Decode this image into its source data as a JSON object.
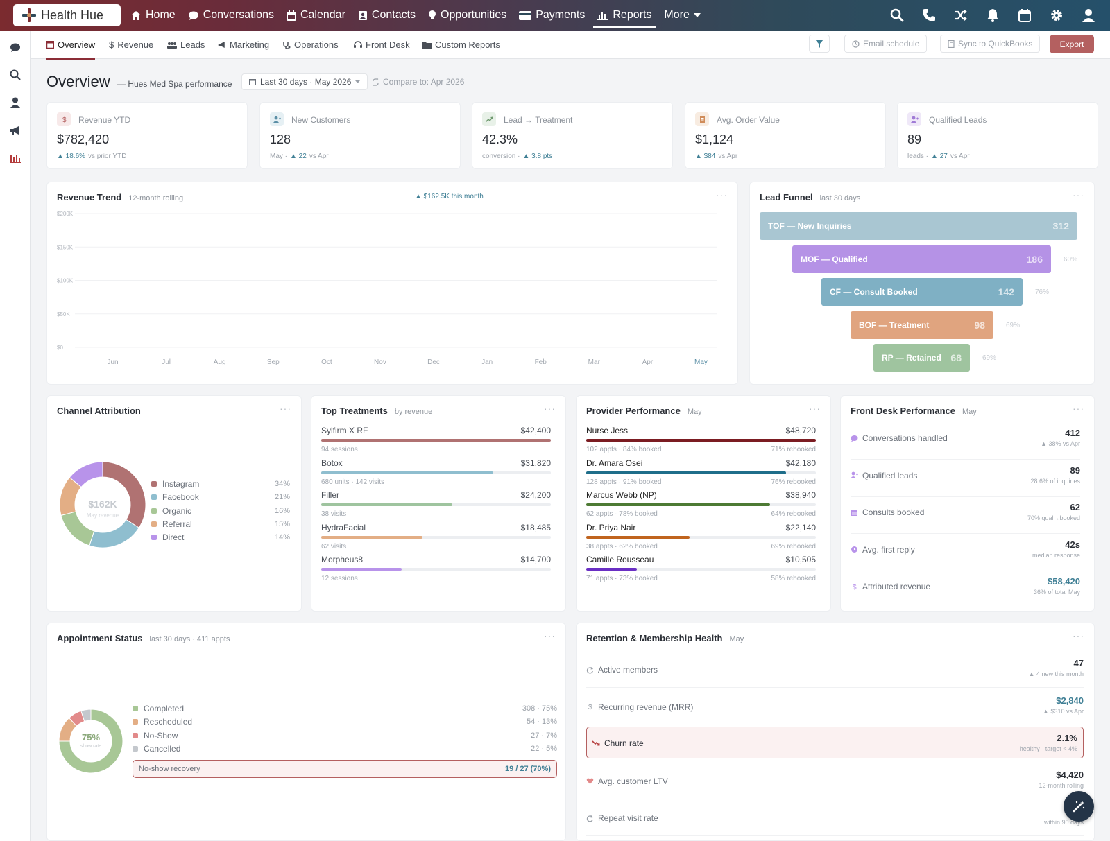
{
  "app": {
    "name": "Health Hue"
  },
  "topnav": {
    "items": [
      "Home",
      "Conversations",
      "Calendar",
      "Contacts",
      "Opportunities",
      "Payments",
      "Reports",
      "More"
    ],
    "active": "Reports"
  },
  "subnav": {
    "tabs": [
      "Overview",
      "Revenue",
      "Leads",
      "Marketing",
      "Operations",
      "Front Desk",
      "Custom Reports"
    ],
    "active": "Overview",
    "email_schedule": "Email schedule",
    "sync": "Sync to QuickBooks",
    "export": "Export"
  },
  "header": {
    "title": "Overview",
    "subtitle": "— Hues Med Spa performance",
    "date_range": "Last 30 days · May 2026",
    "compare": "Compare to: Apr 2026"
  },
  "kpis": [
    {
      "label": "Revenue YTD",
      "value": "$782,420",
      "sub_prefix": "",
      "delta": "▲ 18.6%",
      "sub_suffix": "vs prior YTD",
      "icon": "$",
      "icon_color": "#b46060",
      "icon_bg": "#f7e9e9"
    },
    {
      "label": "New Customers",
      "value": "128",
      "sub_prefix": "May ·",
      "delta": "▲ 22",
      "sub_suffix": "vs Apr",
      "icon": "user-plus",
      "icon_color": "#5b8fa6",
      "icon_bg": "#e6f0f4"
    },
    {
      "label": "Lead → Treatment",
      "value": "42.3%",
      "sub_prefix": "conversion ·",
      "delta": "▲ 3.8 pts",
      "sub_suffix": "",
      "icon": "trend",
      "icon_color": "#6f9a6f",
      "icon_bg": "#e8f1e8"
    },
    {
      "label": "Avg. Order Value",
      "value": "$1,124",
      "sub_prefix": "",
      "delta": "▲ $84",
      "sub_suffix": "vs Apr",
      "icon": "receipt",
      "icon_color": "#d08c5a",
      "icon_bg": "#f8ece1"
    },
    {
      "label": "Qualified Leads",
      "value": "89",
      "sub_prefix": "leads ·",
      "delta": "▲ 27",
      "sub_suffix": "vs Apr",
      "icon": "user-check",
      "icon_color": "#a07bd6",
      "icon_bg": "#efe8f8"
    }
  ],
  "revenue_trend": {
    "title": "Revenue Trend",
    "subtitle": "12-month rolling",
    "badge": "▲ $162.5K this month"
  },
  "chart_data": {
    "type": "line",
    "title": "Revenue Trend",
    "subtitle": "12-month rolling",
    "categories": [
      "Jun",
      "Jul",
      "Aug",
      "Sep",
      "Oct",
      "Nov",
      "Dec",
      "Jan",
      "Feb",
      "Mar",
      "Apr",
      "May"
    ],
    "yticks": [
      "$200K",
      "$150K",
      "$100K",
      "$50K",
      "$0"
    ],
    "ylim": [
      0,
      200000
    ],
    "series": [],
    "grid": true
  },
  "lead_funnel": {
    "title": "Lead Funnel",
    "subtitle": "last 30 days",
    "stages": [
      {
        "label": "TOF — New Inquiries",
        "value": "312",
        "pct": "",
        "color": "#a9c6d2"
      },
      {
        "label": "MOF — Qualified",
        "value": "186",
        "pct": "60%",
        "color": "#b592e6"
      },
      {
        "label": "CF — Consult Booked",
        "value": "142",
        "pct": "76%",
        "color": "#7fb0c4"
      },
      {
        "label": "BOF — Treatment",
        "value": "98",
        "pct": "69%",
        "color": "#e0a47f"
      },
      {
        "label": "RP — Retained",
        "value": "68",
        "pct": "69%",
        "color": "#9fc49f"
      }
    ]
  },
  "channel": {
    "title": "Channel Attribution",
    "center_value": "$162K",
    "center_label": "May revenue",
    "items": [
      {
        "name": "Instagram",
        "pct": "34%",
        "value": 34,
        "color": "#b07272"
      },
      {
        "name": "Facebook",
        "pct": "21%",
        "value": 21,
        "color": "#8fbecf"
      },
      {
        "name": "Organic",
        "pct": "16%",
        "value": 16,
        "color": "#a8c796"
      },
      {
        "name": "Referral",
        "pct": "15%",
        "value": 15,
        "color": "#e3ae85"
      },
      {
        "name": "Direct",
        "pct": "14%",
        "value": 14,
        "color": "#b893ea"
      }
    ]
  },
  "treatments": {
    "title": "Top Treatments",
    "subtitle": "by revenue",
    "items": [
      {
        "name": "Sylfirm X RF",
        "value": "$42,400",
        "sub": "94 sessions",
        "fill": 1.0,
        "color": "#b07272"
      },
      {
        "name": "Botox",
        "value": "$31,820",
        "sub": "680 units · 142 visits",
        "fill": 0.75,
        "color": "#8fbecf"
      },
      {
        "name": "Filler",
        "value": "$24,200",
        "sub": "38 visits",
        "fill": 0.57,
        "color": "#9fc49f"
      },
      {
        "name": "HydraFacial",
        "value": "$18,485",
        "sub": "62 visits",
        "fill": 0.44,
        "color": "#e3ae85"
      },
      {
        "name": "Morpheus8",
        "value": "$14,700",
        "sub": "12 sessions",
        "fill": 0.35,
        "color": "#b893ea"
      }
    ]
  },
  "providers": {
    "title": "Provider Performance",
    "subtitle": "May",
    "items": [
      {
        "name": "Nurse Jess",
        "value": "$48,720",
        "sub": "102 appts · 84% booked",
        "rebook": "71% rebooked",
        "fill": 1.0,
        "color": "#7b1c22"
      },
      {
        "name": "Dr. Amara Osei",
        "value": "$42,180",
        "sub": "128 appts · 91% booked",
        "rebook": "76% rebooked",
        "fill": 0.87,
        "color": "#1f6e8a"
      },
      {
        "name": "Marcus Webb (NP)",
        "value": "$38,940",
        "sub": "62 appts · 78% booked",
        "rebook": "64% rebooked",
        "fill": 0.8,
        "color": "#4d7a34"
      },
      {
        "name": "Dr. Priya Nair",
        "value": "$22,140",
        "sub": "38 appts · 62% booked",
        "rebook": "69% rebooked",
        "fill": 0.45,
        "color": "#c0641e"
      },
      {
        "name": "Camille Rousseau",
        "value": "$10,505",
        "sub": "71 appts · 73% booked",
        "rebook": "58% rebooked",
        "fill": 0.22,
        "color": "#6a2fc4"
      }
    ]
  },
  "front_desk": {
    "title": "Front Desk Performance",
    "subtitle": "May",
    "items": [
      {
        "label": "Conversations handled",
        "value": "412",
        "sub": "▲ 38% vs Apr",
        "icon": "chat",
        "color": "#b893ea",
        "value_color": "#2b2f36"
      },
      {
        "label": "Qualified leads",
        "value": "89",
        "sub": "28.6% of inquiries",
        "icon": "user-check",
        "color": "#b893ea",
        "value_color": "#2b2f36"
      },
      {
        "label": "Consults booked",
        "value": "62",
        "sub": "70% qual→booked",
        "icon": "calendar",
        "color": "#b893ea",
        "value_color": "#2b2f36"
      },
      {
        "label": "Avg. first reply",
        "value": "42s",
        "sub": "median response",
        "icon": "clock",
        "color": "#b893ea",
        "value_color": "#2b2f36"
      },
      {
        "label": "Attributed revenue",
        "value": "$58,420",
        "sub": "36% of total May",
        "icon": "$",
        "color": "#b893ea",
        "value_color": "#3f7f95"
      }
    ]
  },
  "appointments": {
    "title": "Appointment Status",
    "subtitle": "last 30 days · 411 appts",
    "center_value": "75%",
    "center_label": "show rate",
    "items": [
      {
        "name": "Completed",
        "value": "308 · 75%",
        "share": 75,
        "color": "#a8c796"
      },
      {
        "name": "Rescheduled",
        "value": "54 · 13%",
        "share": 13,
        "color": "#e3ae85"
      },
      {
        "name": "No-Show",
        "value": "27 · 7%",
        "share": 7,
        "color": "#e28a8a"
      },
      {
        "name": "Cancelled",
        "value": "22 · 5%",
        "share": 5,
        "color": "#c4c8cd"
      }
    ],
    "recovery_label": "No-show recovery",
    "recovery_value": "19 / 27 (70%)"
  },
  "retention": {
    "title": "Retention & Membership Health",
    "subtitle": "May",
    "items": [
      {
        "label": "Active members",
        "value": "47",
        "sub": "▲ 4 new this month",
        "icon": "refresh",
        "color": "#9aa0a8",
        "value_color": "#2b2f36"
      },
      {
        "label": "Recurring revenue (MRR)",
        "value": "$2,840",
        "sub": "▲ $310 vs Apr",
        "icon": "$",
        "color": "#9aa0a8",
        "value_color": "#3f7f95"
      },
      {
        "label": "Churn rate",
        "value": "2.1%",
        "sub": "healthy · target < 4%",
        "icon": "trend-down",
        "color": "#b43b3b",
        "value_color": "#2b2f36",
        "highlight": true
      },
      {
        "label": "Avg. customer LTV",
        "value": "$4,420",
        "sub": "12-month rolling",
        "icon": "heart",
        "color": "#e28a8a",
        "value_color": "#2b2f36"
      },
      {
        "label": "Repeat visit rate",
        "value": "",
        "sub": "within 90 days",
        "icon": "refresh",
        "color": "#9aa0a8",
        "value_color": "#2b2f36"
      }
    ]
  }
}
